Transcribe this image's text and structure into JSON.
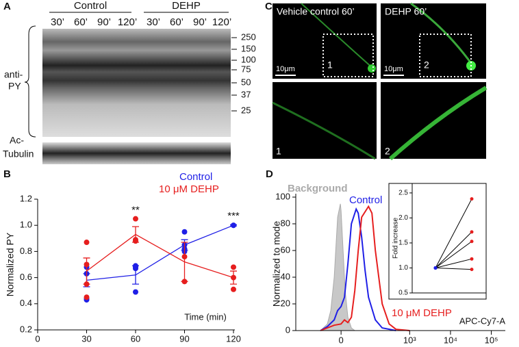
{
  "figure": {
    "panel_a": {
      "label": "A",
      "groups": [
        "Control",
        "DEHP"
      ],
      "times": [
        "30’",
        "60’",
        "90’",
        "120’",
        "30’",
        "60’",
        "90’",
        "120’"
      ],
      "markers": [
        250,
        150,
        100,
        75,
        50,
        37,
        25
      ],
      "antibodies": [
        [
          "anti-",
          "PY"
        ],
        [
          "Ac-",
          "Tubulin"
        ]
      ]
    },
    "panel_c": {
      "label": "C",
      "titles": [
        "Vehicle control 60’",
        "DEHP 60’"
      ],
      "scale_bars": [
        "10μm",
        "10μm"
      ],
      "regions": [
        "1",
        "2",
        "1",
        "2"
      ]
    },
    "panel_labels": [
      "B",
      "D"
    ]
  },
  "chart_data": [
    {
      "type": "line",
      "xlabel": "Time (min)",
      "ylabel": "Normalized PY",
      "x": [
        30,
        60,
        90,
        120
      ],
      "xlim": [
        0,
        120
      ],
      "xticks": [
        0,
        30,
        60,
        90,
        120
      ],
      "ylim": [
        0.2,
        1.2
      ],
      "yticks": [
        0.2,
        0.4,
        0.6,
        0.8,
        {
          "value": 1,
          "label": "1.0"
        },
        1.2
      ],
      "series": [
        {
          "name": "Control",
          "color": "#1f1fe6",
          "values": [
            0.58,
            0.62,
            0.85,
            1.0
          ],
          "errors": [
            0.05,
            0.07,
            0.04,
            0.005
          ],
          "points_x": [
            30,
            30,
            30,
            30,
            60,
            60,
            60,
            60,
            90,
            90,
            90,
            90,
            120,
            120
          ],
          "points_y": [
            0.68,
            0.63,
            0.44,
            0.43,
            0.69,
            0.67,
            0.68,
            0.49,
            0.95,
            0.82,
            0.8,
            0.85,
            1.0,
            1.0
          ]
        },
        {
          "name": "10 μM DEHP",
          "color": "#e61e1e",
          "values": [
            0.65,
            0.93,
            0.72,
            0.6
          ],
          "errors": [
            0.1,
            0.06,
            0.15,
            0.05
          ],
          "points_x": [
            30,
            30,
            30,
            30,
            60,
            60,
            60,
            90,
            90,
            120,
            120,
            120
          ],
          "points_y": [
            0.87,
            0.7,
            0.55,
            0.45,
            1.05,
            0.89,
            0.88,
            0.76,
            0.57,
            0.68,
            0.51,
            0.6
          ]
        }
      ],
      "annotations": [
        {
          "text": "**",
          "x": 60
        },
        {
          "text": "***",
          "x": 120
        }
      ]
    },
    {
      "type": "density",
      "xlabel": "APC-Cy7-A",
      "ylabel": "Normalized to mode",
      "xlim": [
        -660,
        220000
      ],
      "xticks": [
        0,
        {
          "value": 1000,
          "label": "10³"
        },
        {
          "value": 10000,
          "label": "10⁴"
        },
        {
          "value": 100000,
          "label": "10⁵"
        }
      ],
      "ylim": [
        0,
        100
      ],
      "yticks": [
        0,
        20,
        40,
        60,
        80,
        100
      ],
      "series": [
        {
          "name": "Background",
          "color": "#aaaaaa",
          "fill": true,
          "x": [
            -300,
            -200,
            -150,
            -100,
            -50,
            -10,
            0,
            30,
            60,
            100,
            150,
            200
          ],
          "values": [
            0,
            5,
            15,
            40,
            85,
            95,
            90,
            60,
            30,
            10,
            2,
            0
          ]
        },
        {
          "name": "Control",
          "color": "#1f1fe6",
          "fill": false,
          "x": [
            -300,
            -200,
            -100,
            -50,
            0,
            50,
            100,
            150,
            220,
            250,
            300,
            350,
            400,
            500,
            600,
            800
          ],
          "values": [
            0,
            3,
            8,
            15,
            18,
            25,
            50,
            80,
            91,
            88,
            70,
            45,
            25,
            8,
            2,
            0
          ]
        },
        {
          "name": "10 μM DEHP",
          "color": "#e61e1e",
          "fill": false,
          "x": [
            -300,
            -200,
            -100,
            0,
            50,
            100,
            150,
            200,
            250,
            300,
            400,
            450,
            500,
            550,
            600,
            700,
            800,
            1000
          ],
          "values": [
            0,
            2,
            4,
            5,
            8,
            6,
            10,
            30,
            60,
            85,
            93,
            88,
            60,
            40,
            20,
            5,
            1,
            0
          ]
        }
      ]
    },
    {
      "type": "slope",
      "ylabel": "Fold increase",
      "categories": [
        null,
        null
      ],
      "colors": [
        "#1f1fe6",
        "#e61e1e"
      ],
      "ylim": [
        0.5,
        2.69
      ],
      "yticks": [
        0.5,
        {
          "value": 1,
          "label": "1.0"
        },
        1.5,
        {
          "value": 2,
          "label": "2.0"
        },
        2.5
      ],
      "series": [
        {
          "values": [
            1.0,
            2.38
          ]
        },
        {
          "values": [
            1.0,
            1.72
          ]
        },
        {
          "values": [
            1.0,
            1.53
          ]
        },
        {
          "values": [
            1.0,
            1.18
          ]
        },
        {
          "values": [
            1.0,
            0.97
          ]
        }
      ]
    }
  ]
}
